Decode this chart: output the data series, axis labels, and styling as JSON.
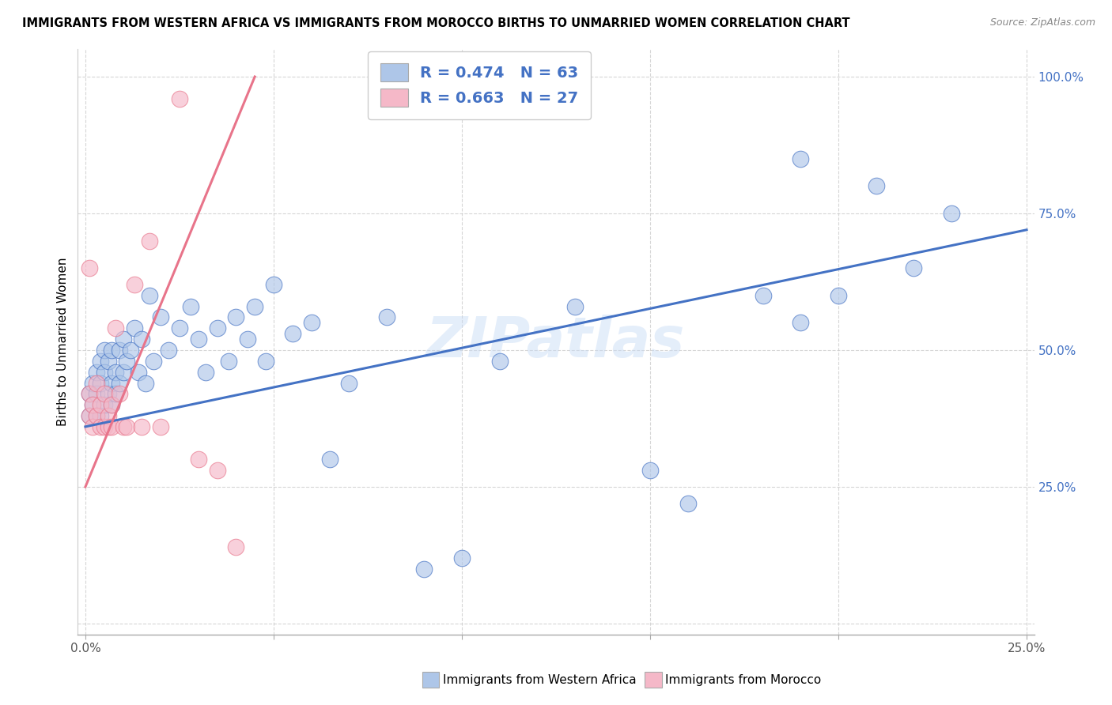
{
  "title": "IMMIGRANTS FROM WESTERN AFRICA VS IMMIGRANTS FROM MOROCCO BIRTHS TO UNMARRIED WOMEN CORRELATION CHART",
  "source": "Source: ZipAtlas.com",
  "ylabel": "Births to Unmarried Women",
  "legend_label_blue": "Immigrants from Western Africa",
  "legend_label_pink": "Immigrants from Morocco",
  "R_blue": "0.474",
  "N_blue": "63",
  "R_pink": "0.663",
  "N_pink": "27",
  "blue_color": "#aec6e8",
  "pink_color": "#f5b8c8",
  "line_blue": "#4472c4",
  "line_pink": "#e8748a",
  "watermark": "ZIPatlas",
  "x_lim": [
    0.0,
    0.25
  ],
  "y_lim": [
    0.0,
    1.0
  ],
  "blue_x": [
    0.001,
    0.001,
    0.002,
    0.002,
    0.003,
    0.003,
    0.003,
    0.004,
    0.004,
    0.004,
    0.005,
    0.005,
    0.005,
    0.006,
    0.006,
    0.007,
    0.007,
    0.007,
    0.008,
    0.008,
    0.009,
    0.009,
    0.01,
    0.01,
    0.011,
    0.012,
    0.013,
    0.014,
    0.015,
    0.016,
    0.017,
    0.018,
    0.02,
    0.022,
    0.025,
    0.028,
    0.03,
    0.032,
    0.035,
    0.038,
    0.04,
    0.043,
    0.045,
    0.048,
    0.05,
    0.055,
    0.06,
    0.065,
    0.07,
    0.08,
    0.09,
    0.1,
    0.11,
    0.13,
    0.15,
    0.16,
    0.18,
    0.19,
    0.2,
    0.21,
    0.22,
    0.23,
    0.19
  ],
  "blue_y": [
    0.38,
    0.42,
    0.4,
    0.44,
    0.38,
    0.42,
    0.46,
    0.38,
    0.44,
    0.48,
    0.4,
    0.46,
    0.5,
    0.42,
    0.48,
    0.4,
    0.44,
    0.5,
    0.42,
    0.46,
    0.44,
    0.5,
    0.46,
    0.52,
    0.48,
    0.5,
    0.54,
    0.46,
    0.52,
    0.44,
    0.6,
    0.48,
    0.56,
    0.5,
    0.54,
    0.58,
    0.52,
    0.46,
    0.54,
    0.48,
    0.56,
    0.52,
    0.58,
    0.48,
    0.62,
    0.53,
    0.55,
    0.3,
    0.44,
    0.56,
    0.1,
    0.12,
    0.48,
    0.58,
    0.28,
    0.22,
    0.6,
    0.55,
    0.6,
    0.8,
    0.65,
    0.75,
    0.85
  ],
  "pink_x": [
    0.001,
    0.001,
    0.001,
    0.002,
    0.002,
    0.003,
    0.003,
    0.004,
    0.004,
    0.005,
    0.005,
    0.006,
    0.006,
    0.007,
    0.007,
    0.008,
    0.009,
    0.01,
    0.011,
    0.013,
    0.015,
    0.017,
    0.02,
    0.025,
    0.03,
    0.035,
    0.04
  ],
  "pink_y": [
    0.38,
    0.42,
    0.65,
    0.36,
    0.4,
    0.38,
    0.44,
    0.36,
    0.4,
    0.36,
    0.42,
    0.36,
    0.38,
    0.36,
    0.4,
    0.54,
    0.42,
    0.36,
    0.36,
    0.62,
    0.36,
    0.7,
    0.36,
    0.96,
    0.3,
    0.28,
    0.14
  ],
  "blue_line_x": [
    0.0,
    0.25
  ],
  "blue_line_y": [
    0.36,
    0.72
  ],
  "pink_line_x": [
    0.0,
    0.045
  ],
  "pink_line_y": [
    0.25,
    1.0
  ]
}
